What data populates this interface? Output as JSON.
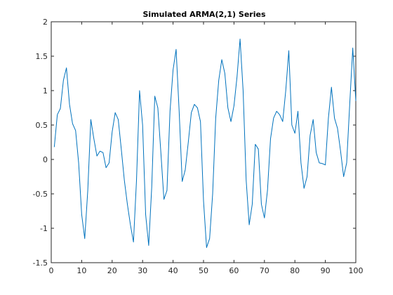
{
  "chart_data": {
    "type": "line",
    "title": "Simulated ARMA(2,1) Series",
    "xlabel": "",
    "ylabel": "",
    "xlim": [
      0,
      100
    ],
    "ylim": [
      -1.5,
      2
    ],
    "xticks": [
      0,
      10,
      20,
      30,
      40,
      50,
      60,
      70,
      80,
      90,
      100
    ],
    "yticks": [
      -1.5,
      -1,
      -0.5,
      0,
      0.5,
      1,
      1.5,
      2
    ],
    "xtick_labels": [
      "0",
      "10",
      "20",
      "30",
      "40",
      "50",
      "60",
      "70",
      "80",
      "90",
      "100"
    ],
    "ytick_labels": [
      "-1.5",
      "-1",
      "-0.5",
      "0",
      "0.5",
      "1",
      "1.5",
      "2"
    ],
    "grid": false,
    "legend": "none",
    "line_color": "#0072BD",
    "series": [
      {
        "x": [
          1,
          2,
          3,
          4,
          5,
          6,
          7,
          8,
          9,
          10,
          11,
          12,
          13,
          14,
          15,
          16,
          17,
          18,
          19,
          20,
          21,
          22,
          23,
          24,
          25,
          26,
          27,
          28,
          29,
          30,
          31,
          32,
          33,
          34,
          35,
          36,
          37,
          38,
          39,
          40,
          41,
          42,
          43,
          44,
          45,
          46,
          47,
          48,
          49,
          50,
          51,
          52,
          53,
          54,
          55,
          56,
          57,
          58,
          59,
          60,
          61,
          62,
          63,
          64,
          65,
          66,
          67,
          68,
          69,
          70,
          71,
          72,
          73,
          74,
          75,
          76,
          77,
          78,
          79,
          80,
          81,
          82,
          83,
          84,
          85,
          86,
          87,
          88,
          89,
          90,
          91,
          92,
          93,
          94,
          95,
          96,
          97,
          98,
          99,
          100
        ],
        "values": [
          0.18,
          0.65,
          0.74,
          1.15,
          1.33,
          0.8,
          0.52,
          0.42,
          -0.05,
          -0.8,
          -1.15,
          -0.45,
          0.58,
          0.3,
          0.05,
          0.12,
          0.1,
          -0.12,
          -0.05,
          0.4,
          0.68,
          0.58,
          0.15,
          -0.3,
          -0.65,
          -0.95,
          -1.2,
          -0.3,
          1.0,
          0.5,
          -0.8,
          -1.25,
          -0.4,
          0.92,
          0.75,
          0.1,
          -0.58,
          -0.45,
          0.7,
          1.3,
          1.6,
          0.7,
          -0.32,
          -0.15,
          0.25,
          0.68,
          0.8,
          0.75,
          0.55,
          -0.6,
          -1.28,
          -1.15,
          -0.5,
          0.6,
          1.15,
          1.45,
          1.25,
          0.75,
          0.55,
          0.78,
          1.2,
          1.75,
          1.0,
          -0.3,
          -0.95,
          -0.65,
          0.22,
          0.15,
          -0.65,
          -0.85,
          -0.45,
          0.3,
          0.6,
          0.7,
          0.65,
          0.55,
          1.0,
          1.58,
          0.5,
          0.38,
          0.7,
          -0.05,
          -0.42,
          -0.25,
          0.35,
          0.58,
          0.1,
          -0.05,
          -0.06,
          -0.08,
          0.6,
          1.05,
          0.6,
          0.45,
          0.12,
          -0.25,
          -0.05,
          0.8,
          1.62,
          0.85
        ]
      }
    ]
  }
}
